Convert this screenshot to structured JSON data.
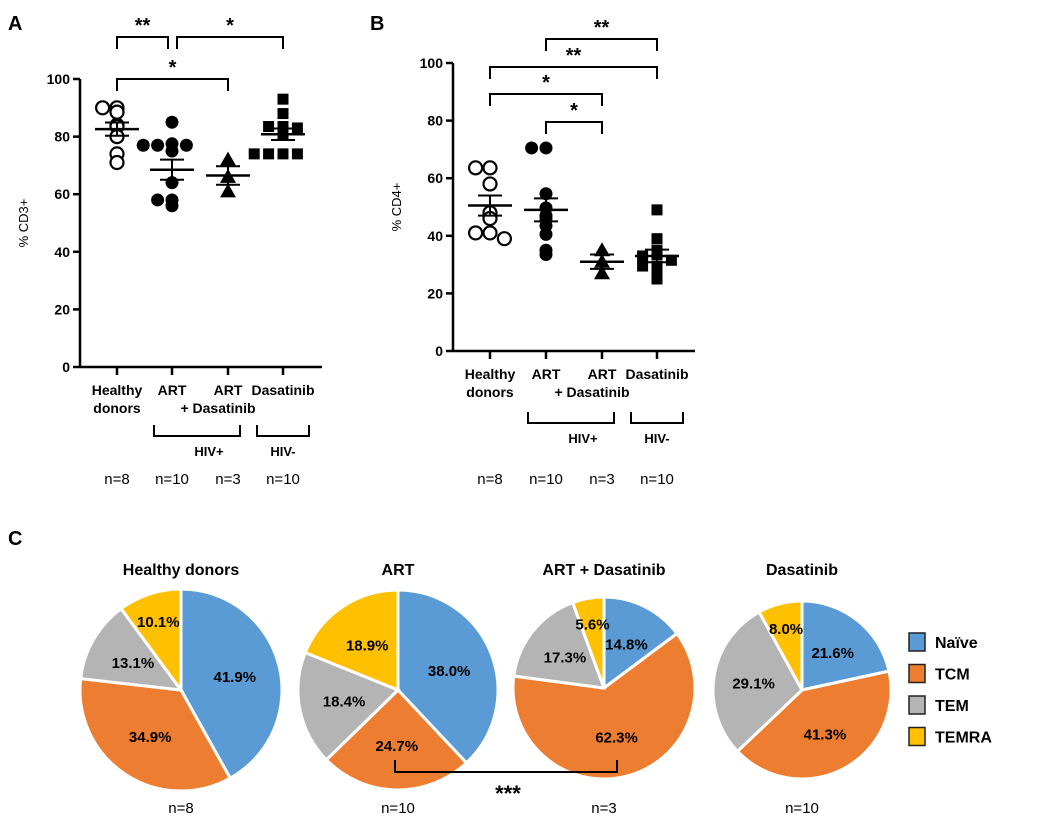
{
  "chart_data": [
    {
      "panel": "A",
      "type": "scatter",
      "ylabel": "% CD3+",
      "ylim": [
        0,
        100
      ],
      "yticks": [
        0,
        20,
        40,
        60,
        80,
        100
      ],
      "categories": [
        "Healthy donors",
        "ART",
        "ART + Dasatinib",
        "Dasatinib"
      ],
      "category_lines": [
        [
          "Healthy",
          "donors"
        ],
        [
          "ART",
          ""
        ],
        [
          "ART",
          "+ Dasatinib"
        ],
        [
          "Dasatinib",
          ""
        ]
      ],
      "markers": [
        "open-circle",
        "circle",
        "triangle",
        "square"
      ],
      "series": [
        {
          "name": "Healthy donors",
          "values": [
            90,
            90,
            88.5,
            84,
            83.5,
            80,
            74,
            71
          ],
          "mean": 82.6,
          "sem": 2.3
        },
        {
          "name": "ART",
          "values": [
            85,
            77.5,
            77,
            77,
            77,
            75,
            64,
            58,
            58,
            56
          ],
          "mean": 68.5,
          "sem": 3.5
        },
        {
          "name": "ART + Dasatinib",
          "values": [
            72,
            66,
            61
          ],
          "mean": 66.5,
          "sem": 3.2
        },
        {
          "name": "Dasatinib",
          "values": [
            93,
            88,
            83.5,
            83.5,
            83,
            81,
            74,
            74,
            74,
            74
          ],
          "mean": 80.8,
          "sem": 2.0
        }
      ],
      "significance": [
        {
          "from": 0,
          "to": 1,
          "label": "**"
        },
        {
          "from": 1,
          "to": 3,
          "label": "*"
        },
        {
          "from": 0,
          "to": 2,
          "label": "*"
        }
      ],
      "groups": [
        {
          "label": "HIV+",
          "from": 1,
          "to": 2
        },
        {
          "label": "HIV-",
          "from": 3,
          "to": 3
        }
      ],
      "n": [
        "n=8",
        "n=10",
        "n=3",
        "n=10"
      ]
    },
    {
      "panel": "B",
      "type": "scatter",
      "ylabel": "% CD4+",
      "ylim": [
        0,
        100
      ],
      "yticks": [
        0,
        20,
        40,
        60,
        80,
        100
      ],
      "categories": [
        "Healthy donors",
        "ART",
        "ART + Dasatinib",
        "Dasatinib"
      ],
      "category_lines": [
        [
          "Healthy",
          "donors"
        ],
        [
          "ART",
          ""
        ],
        [
          "ART",
          "+ Dasatinib"
        ],
        [
          "Dasatinib",
          ""
        ]
      ],
      "markers": [
        "open-circle",
        "circle",
        "triangle",
        "square"
      ],
      "series": [
        {
          "name": "Healthy donors",
          "values": [
            63.6,
            63.6,
            58,
            48,
            46,
            41,
            41,
            39
          ],
          "mean": 50.5,
          "sem": 3.5
        },
        {
          "name": "ART",
          "values": [
            70.5,
            70.5,
            54.6,
            49.7,
            47,
            46,
            43.5,
            40.5,
            35,
            33.5
          ],
          "mean": 49,
          "sem": 4
        },
        {
          "name": "ART + Dasatinib",
          "values": [
            35,
            31,
            27
          ],
          "mean": 31,
          "sem": 2.5
        },
        {
          "name": "Dasatinib",
          "values": [
            49,
            39,
            35,
            33.5,
            33,
            31.5,
            29.5,
            29.5,
            27,
            25
          ],
          "mean": 33,
          "sem": 2.2
        }
      ],
      "significance": [
        {
          "from": 1,
          "to": 3,
          "label": "**"
        },
        {
          "from": 0,
          "to": 3,
          "label": "**"
        },
        {
          "from": 0,
          "to": 2,
          "label": "*"
        },
        {
          "from": 1,
          "to": 2,
          "label": "*"
        }
      ],
      "groups": [
        {
          "label": "HIV+",
          "from": 1,
          "to": 2
        },
        {
          "label": "HIV-",
          "from": 3,
          "to": 3
        }
      ],
      "n": [
        "n=8",
        "n=10",
        "n=3",
        "n=10"
      ]
    },
    {
      "panel": "C",
      "type": "pie",
      "legend": [
        "Naïve",
        "TCM",
        "TEM",
        "TEMRA"
      ],
      "legend_placement": "right",
      "colors": [
        "#5B9BD5",
        "#ED7D31",
        "#B4B4B4",
        "#FFC000"
      ],
      "pies": [
        {
          "title": "Healthy donors",
          "values": [
            41.9,
            34.9,
            13.1,
            10.1
          ],
          "labels": [
            "41.9%",
            "34.9%",
            "13.1%",
            "10.1%"
          ],
          "n": "n=8"
        },
        {
          "title": "ART",
          "values": [
            38.0,
            24.7,
            18.4,
            18.9
          ],
          "labels": [
            "38.0%",
            "24.7%",
            "18.4%",
            "18.9%"
          ],
          "n": "n=10"
        },
        {
          "title": "ART + Dasatinib",
          "values": [
            14.8,
            62.3,
            17.3,
            5.6
          ],
          "labels": [
            "14.8%",
            "62.3%",
            "17.3%",
            "5.6%"
          ],
          "n": "n=3"
        },
        {
          "title": "Dasatinib",
          "values": [
            21.6,
            41.3,
            29.1,
            8.0
          ],
          "labels": [
            "21.6%",
            "41.3%",
            "29.1%",
            "8.0%"
          ],
          "n": "n=10"
        }
      ],
      "significance": [
        {
          "from": 1,
          "to": 2,
          "label": "***"
        }
      ]
    }
  ],
  "panel_labels": [
    "A",
    "B",
    "C"
  ]
}
